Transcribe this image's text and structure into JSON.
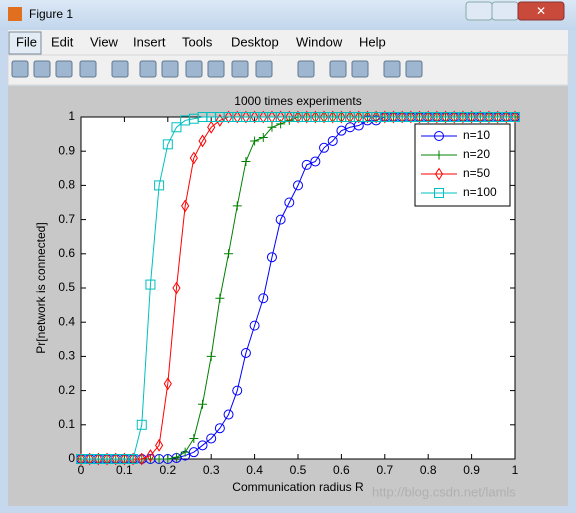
{
  "window": {
    "title": "Figure 1",
    "menu": [
      "File",
      "Edit",
      "View",
      "Insert",
      "Tools",
      "Desktop",
      "Window",
      "Help"
    ],
    "watermark": "http://blog.csdn.net/lamls"
  },
  "chart_data": {
    "type": "line",
    "title": "1000 times experiments",
    "x_label": "Communication radius R",
    "y_label": "Pr[network is connected]",
    "x": [
      0,
      0.02,
      0.04,
      0.06,
      0.08,
      0.1,
      0.12,
      0.14,
      0.16,
      0.18,
      0.2,
      0.22,
      0.24,
      0.26,
      0.28,
      0.3,
      0.32,
      0.34,
      0.36,
      0.38,
      0.4,
      0.42,
      0.44,
      0.46,
      0.48,
      0.5,
      0.52,
      0.54,
      0.56,
      0.58,
      0.6,
      0.62,
      0.64,
      0.66,
      0.68,
      0.7,
      0.72,
      0.74,
      0.76,
      0.78,
      0.8,
      0.82,
      0.84,
      0.86,
      0.88,
      0.9,
      0.92,
      0.94,
      0.96,
      0.98,
      1
    ],
    "series": [
      {
        "name": "n=10",
        "color": "#0000ff",
        "marker": "circle",
        "values": [
          0,
          0,
          0,
          0,
          0,
          0,
          0,
          0,
          0,
          0,
          0,
          0.003,
          0.01,
          0.02,
          0.04,
          0.06,
          0.09,
          0.13,
          0.2,
          0.31,
          0.39,
          0.47,
          0.59,
          0.7,
          0.75,
          0.8,
          0.86,
          0.87,
          0.91,
          0.93,
          0.96,
          0.97,
          0.975,
          0.99,
          0.99,
          1,
          1,
          1,
          1,
          1,
          1,
          1,
          1,
          1,
          1,
          1,
          1,
          1,
          1,
          1,
          1
        ]
      },
      {
        "name": "n=20",
        "color": "#008000",
        "marker": "plus",
        "values": [
          0,
          0,
          0,
          0,
          0,
          0,
          0,
          0,
          0,
          0,
          0,
          0.005,
          0.02,
          0.06,
          0.16,
          0.3,
          0.47,
          0.6,
          0.74,
          0.87,
          0.93,
          0.94,
          0.97,
          0.98,
          0.99,
          1,
          1,
          1,
          1,
          1,
          1,
          1,
          1,
          1,
          1,
          1,
          1,
          1,
          1,
          1,
          1,
          1,
          1,
          1,
          1,
          1,
          1,
          1,
          1,
          1,
          1
        ]
      },
      {
        "name": "n=50",
        "color": "#ff0000",
        "marker": "diamond",
        "values": [
          0,
          0,
          0,
          0,
          0,
          0,
          0,
          0,
          0.01,
          0.04,
          0.22,
          0.5,
          0.74,
          0.88,
          0.93,
          0.97,
          0.99,
          1,
          1,
          1,
          1,
          1,
          1,
          1,
          1,
          1,
          1,
          1,
          1,
          1,
          1,
          1,
          1,
          1,
          1,
          1,
          1,
          1,
          1,
          1,
          1,
          1,
          1,
          1,
          1,
          1,
          1,
          1,
          1,
          1,
          1
        ]
      },
      {
        "name": "n=100",
        "color": "#00bfbf",
        "marker": "square",
        "values": [
          0,
          0,
          0,
          0,
          0,
          0,
          0,
          0.1,
          0.51,
          0.8,
          0.92,
          0.97,
          0.99,
          0.995,
          1,
          1,
          1,
          1,
          1,
          1,
          1,
          1,
          1,
          1,
          1,
          1,
          1,
          1,
          1,
          1,
          1,
          1,
          1,
          1,
          1,
          1,
          1,
          1,
          1,
          1,
          1,
          1,
          1,
          1,
          1,
          1,
          1,
          1,
          1,
          1,
          1
        ]
      }
    ],
    "xlim": [
      0,
      1
    ],
    "ylim": [
      0,
      1
    ],
    "xticks": [
      0,
      0.1,
      0.2,
      0.3,
      0.4,
      0.5,
      0.6,
      0.7,
      0.8,
      0.9,
      1
    ],
    "yticks": [
      0,
      0.1,
      0.2,
      0.3,
      0.4,
      0.5,
      0.6,
      0.7,
      0.8,
      0.9,
      1
    ],
    "grid": false,
    "legend": "northeast"
  }
}
